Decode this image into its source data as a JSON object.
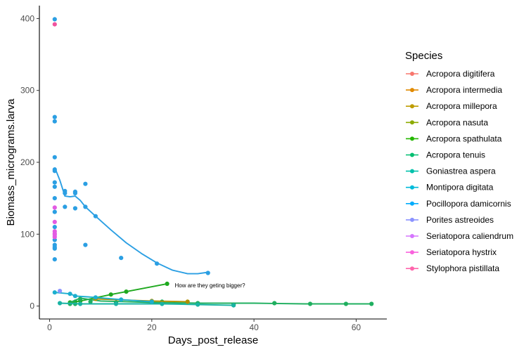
{
  "chart_data": {
    "type": "scatter",
    "xlabel": "Days_post_release",
    "ylabel": "Biomass_micrograms.larva",
    "xlim": [
      -2,
      66
    ],
    "ylim": [
      -18,
      418
    ],
    "xticks": [
      0,
      20,
      40,
      60
    ],
    "yticks": [
      0,
      100,
      200,
      300,
      400
    ],
    "grid": false,
    "legend": {
      "title": "Species",
      "position": "right",
      "entries": [
        {
          "name": "Acropora digitifera",
          "color": "#F8766D"
        },
        {
          "name": "Acropora intermedia",
          "color": "#E18A00"
        },
        {
          "name": "Acropora millepora",
          "color": "#BE9C00"
        },
        {
          "name": "Acropora nasuta",
          "color": "#8CAB00"
        },
        {
          "name": "Acropora spathulata",
          "color": "#24B700"
        },
        {
          "name": "Acropora tenuis",
          "color": "#00BE70"
        },
        {
          "name": "Goniastrea aspera",
          "color": "#00C1AB"
        },
        {
          "name": "Montipora digitata",
          "color": "#00BBDA"
        },
        {
          "name": "Pocillopora damicornis",
          "color": "#00ACFC"
        },
        {
          "name": "Porites astreoides",
          "color": "#8B93FF"
        },
        {
          "name": "Seriatopora caliendrum",
          "color": "#D575FE"
        },
        {
          "name": "Seriatopora hystrix",
          "color": "#F962DD"
        },
        {
          "name": "Stylophora pistillata",
          "color": "#FF65AC"
        }
      ]
    },
    "series": [
      {
        "name": "Pocillopora damicornis",
        "color": "#2B9FE3",
        "points": [
          [
            1,
            399
          ],
          [
            1,
            263
          ],
          [
            1,
            257
          ],
          [
            1,
            207
          ],
          [
            1,
            190
          ],
          [
            1,
            188
          ],
          [
            1,
            172
          ],
          [
            1,
            166
          ],
          [
            1,
            150
          ],
          [
            1,
            131
          ],
          [
            1,
            110
          ],
          [
            1,
            92
          ],
          [
            1,
            85
          ],
          [
            1,
            82
          ],
          [
            1,
            80
          ],
          [
            1,
            65
          ],
          [
            3,
            160
          ],
          [
            3,
            157
          ],
          [
            3,
            138
          ],
          [
            5,
            159
          ],
          [
            5,
            157
          ],
          [
            5,
            136
          ],
          [
            7,
            170
          ],
          [
            7,
            138
          ],
          [
            7,
            85
          ],
          [
            9,
            125
          ],
          [
            14,
            67
          ],
          [
            21,
            59
          ],
          [
            31,
            46
          ]
        ],
        "smooth": [
          [
            1,
            193
          ],
          [
            2,
            175
          ],
          [
            3,
            153
          ],
          [
            4,
            152
          ],
          [
            5,
            153
          ],
          [
            6,
            147
          ],
          [
            7,
            138
          ],
          [
            9,
            125
          ],
          [
            12,
            106
          ],
          [
            15,
            88
          ],
          [
            18,
            73
          ],
          [
            21,
            60
          ],
          [
            24,
            50
          ],
          [
            27,
            45
          ],
          [
            29,
            45
          ],
          [
            31,
            47
          ]
        ]
      },
      {
        "name": "Acropora spathulata",
        "color": "#1FA91F",
        "points": [
          [
            4,
            5
          ],
          [
            5,
            6
          ],
          [
            6,
            7
          ],
          [
            12,
            16
          ],
          [
            15,
            20
          ],
          [
            23,
            31
          ]
        ],
        "smooth": [
          [
            4,
            5
          ],
          [
            5,
            6
          ],
          [
            6,
            7
          ],
          [
            12,
            16
          ],
          [
            15,
            20
          ],
          [
            23,
            31
          ]
        ]
      },
      {
        "name": "Acropora tenuis",
        "color": "#1FAF5F",
        "points": [
          [
            4,
            3
          ],
          [
            5,
            3
          ],
          [
            6,
            10
          ],
          [
            8,
            6
          ],
          [
            13,
            5
          ],
          [
            22,
            6
          ],
          [
            29,
            4
          ],
          [
            36,
            2
          ],
          [
            44,
            4
          ],
          [
            51,
            3
          ],
          [
            58,
            3
          ],
          [
            63,
            3
          ]
        ],
        "smooth": [
          [
            4,
            5
          ],
          [
            6,
            11
          ],
          [
            8,
            9
          ],
          [
            10,
            7
          ],
          [
            15,
            6
          ],
          [
            20,
            5
          ],
          [
            30,
            4
          ],
          [
            40,
            4
          ],
          [
            50,
            3
          ],
          [
            63,
            3
          ]
        ]
      },
      {
        "name": "Goniastrea aspera",
        "color": "#19B3A3",
        "points": [
          [
            2,
            4
          ],
          [
            6,
            3
          ],
          [
            13,
            3
          ],
          [
            22,
            3
          ],
          [
            29,
            2
          ],
          [
            36,
            1
          ]
        ],
        "smooth": [
          [
            2,
            4
          ],
          [
            6,
            3
          ],
          [
            13,
            3
          ],
          [
            22,
            3
          ],
          [
            29,
            2
          ],
          [
            36,
            1
          ]
        ]
      },
      {
        "name": "Acropora millepora",
        "color": "#AE9000",
        "points": [
          [
            9,
            10
          ],
          [
            20,
            7
          ],
          [
            27,
            6
          ]
        ],
        "smooth": [
          [
            9,
            10
          ],
          [
            20,
            7
          ],
          [
            27,
            6
          ]
        ]
      },
      {
        "name": "Montipora digitata",
        "color": "#1CAFCF",
        "points": [
          [
            1,
            19
          ],
          [
            4,
            17
          ],
          [
            5,
            14
          ],
          [
            9,
            12
          ],
          [
            14,
            9
          ],
          [
            20,
            6
          ]
        ],
        "smooth": [
          [
            1,
            19
          ],
          [
            4,
            17
          ],
          [
            5,
            14
          ],
          [
            9,
            12
          ],
          [
            14,
            9
          ],
          [
            20,
            6
          ]
        ]
      },
      {
        "name": "Porites astreoides",
        "color": "#8B93FF",
        "points": [
          [
            2,
            21
          ]
        ],
        "smooth": []
      },
      {
        "name": "Seriatopora hystrix",
        "color": "#E35BE3",
        "points": [
          [
            1,
            137
          ],
          [
            1,
            117
          ],
          [
            1,
            104
          ],
          [
            1,
            101
          ],
          [
            1,
            99
          ],
          [
            1,
            96
          ]
        ],
        "smooth": []
      },
      {
        "name": "Stylophora pistillata",
        "color": "#F0539E",
        "points": [
          [
            1,
            392
          ]
        ],
        "smooth": []
      }
    ],
    "annotations": [
      {
        "text": "How are they geting bigger?",
        "x": 24.5,
        "y": 29
      }
    ]
  }
}
